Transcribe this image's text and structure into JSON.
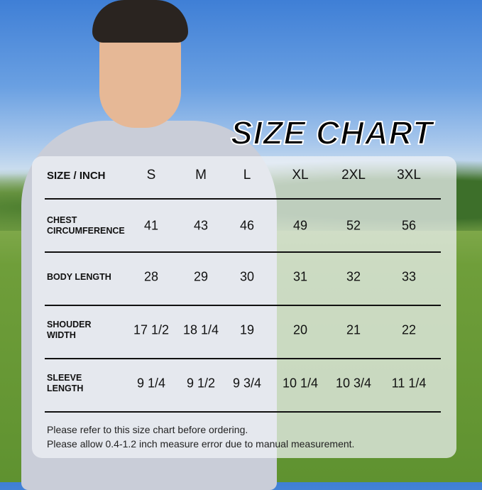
{
  "title": "SIZE CHART",
  "table": {
    "corner_label": "SIZE / INCH",
    "sizes": [
      "S",
      "M",
      "L",
      "XL",
      "2XL",
      "3XL"
    ],
    "rows": [
      {
        "label_lines": [
          "CHEST",
          "CIRCUMFERENCE"
        ],
        "values": [
          "41",
          "43",
          "46",
          "49",
          "52",
          "56"
        ]
      },
      {
        "label_lines": [
          "BODY LENGTH"
        ],
        "values": [
          "28",
          "29",
          "30",
          "31",
          "32",
          "33"
        ]
      },
      {
        "label_lines": [
          "SHOUDER",
          "WIDTH"
        ],
        "values": [
          "17 1/2",
          "18 1/4",
          "19",
          "20",
          "21",
          "22"
        ]
      },
      {
        "label_lines": [
          "SLEEVE",
          "LENGTH"
        ],
        "values": [
          "9 1/4",
          "9 1/2",
          "9 3/4",
          "10 1/4",
          "10 3/4",
          "11 1/4"
        ]
      }
    ]
  },
  "notes": [
    "Please refer to this size chart before ordering.",
    "Please allow 0.4-1.2 inch measure error due to manual measurement."
  ]
}
